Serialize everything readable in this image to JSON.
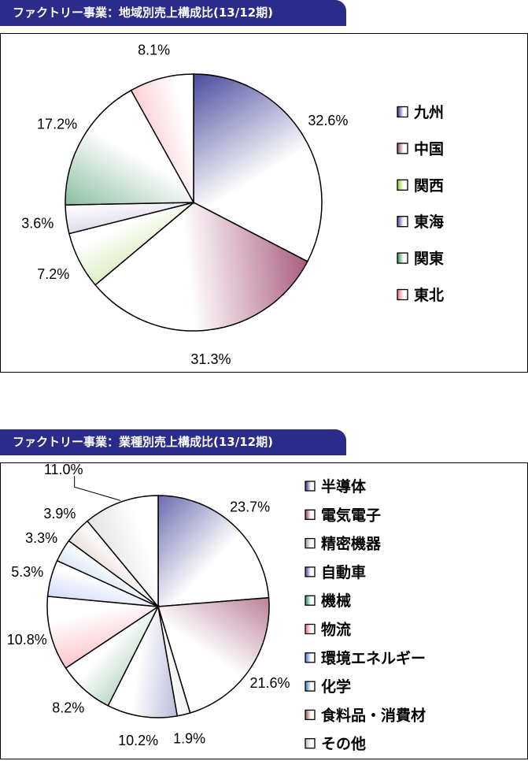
{
  "charts": [
    {
      "title": "ファクトリー事業：地域別売上構成比(13/12期)",
      "chart_data": {
        "type": "pie",
        "title": "ファクトリー事業：地域別売上構成比(13/12期)",
        "categories": [
          "九州",
          "中国",
          "関西",
          "東海",
          "関東",
          "東北"
        ],
        "values": [
          32.6,
          31.3,
          7.2,
          3.6,
          17.2,
          8.1
        ],
        "value_labels": [
          "32.6%",
          "31.3%",
          "7.2%",
          "3.6%",
          "17.2%",
          "8.1%"
        ],
        "colors": [
          "#2e2e8e",
          "#9a3f68",
          "#8ccc2c",
          "#4a4a9c",
          "#2e8a58",
          "#f26a7a"
        ],
        "legend_position": "right",
        "start": "12 o'clock, clockwise"
      }
    },
    {
      "title": "ファクトリー事業：業種別売上構成比(13/12期)",
      "chart_data": {
        "type": "pie",
        "title": "ファクトリー事業：業種別売上構成比(13/12期)",
        "categories": [
          "半導体",
          "電気電子",
          "精密機器",
          "自動車",
          "機械",
          "物流",
          "環境エネルギー",
          "化学",
          "食料品・消費材",
          "その他"
        ],
        "values": [
          23.7,
          21.6,
          1.9,
          10.2,
          8.2,
          10.8,
          5.3,
          3.3,
          3.9,
          11.0
        ],
        "value_labels": [
          "23.7%",
          "21.6%",
          "1.9%",
          "10.2%",
          "8.2%",
          "10.8%",
          "5.3%",
          "3.3%",
          "3.9%",
          "11.0%"
        ],
        "colors": [
          "#2e2e8e",
          "#9a3f68",
          "#9a9a9a",
          "#4a4a9c",
          "#2e8a58",
          "#f26a7a",
          "#4a6ee6",
          "#2f7fc2",
          "#9e5a48",
          "#bcbcbc"
        ],
        "legend_position": "right",
        "start": "12 o'clock, clockwise"
      }
    }
  ]
}
